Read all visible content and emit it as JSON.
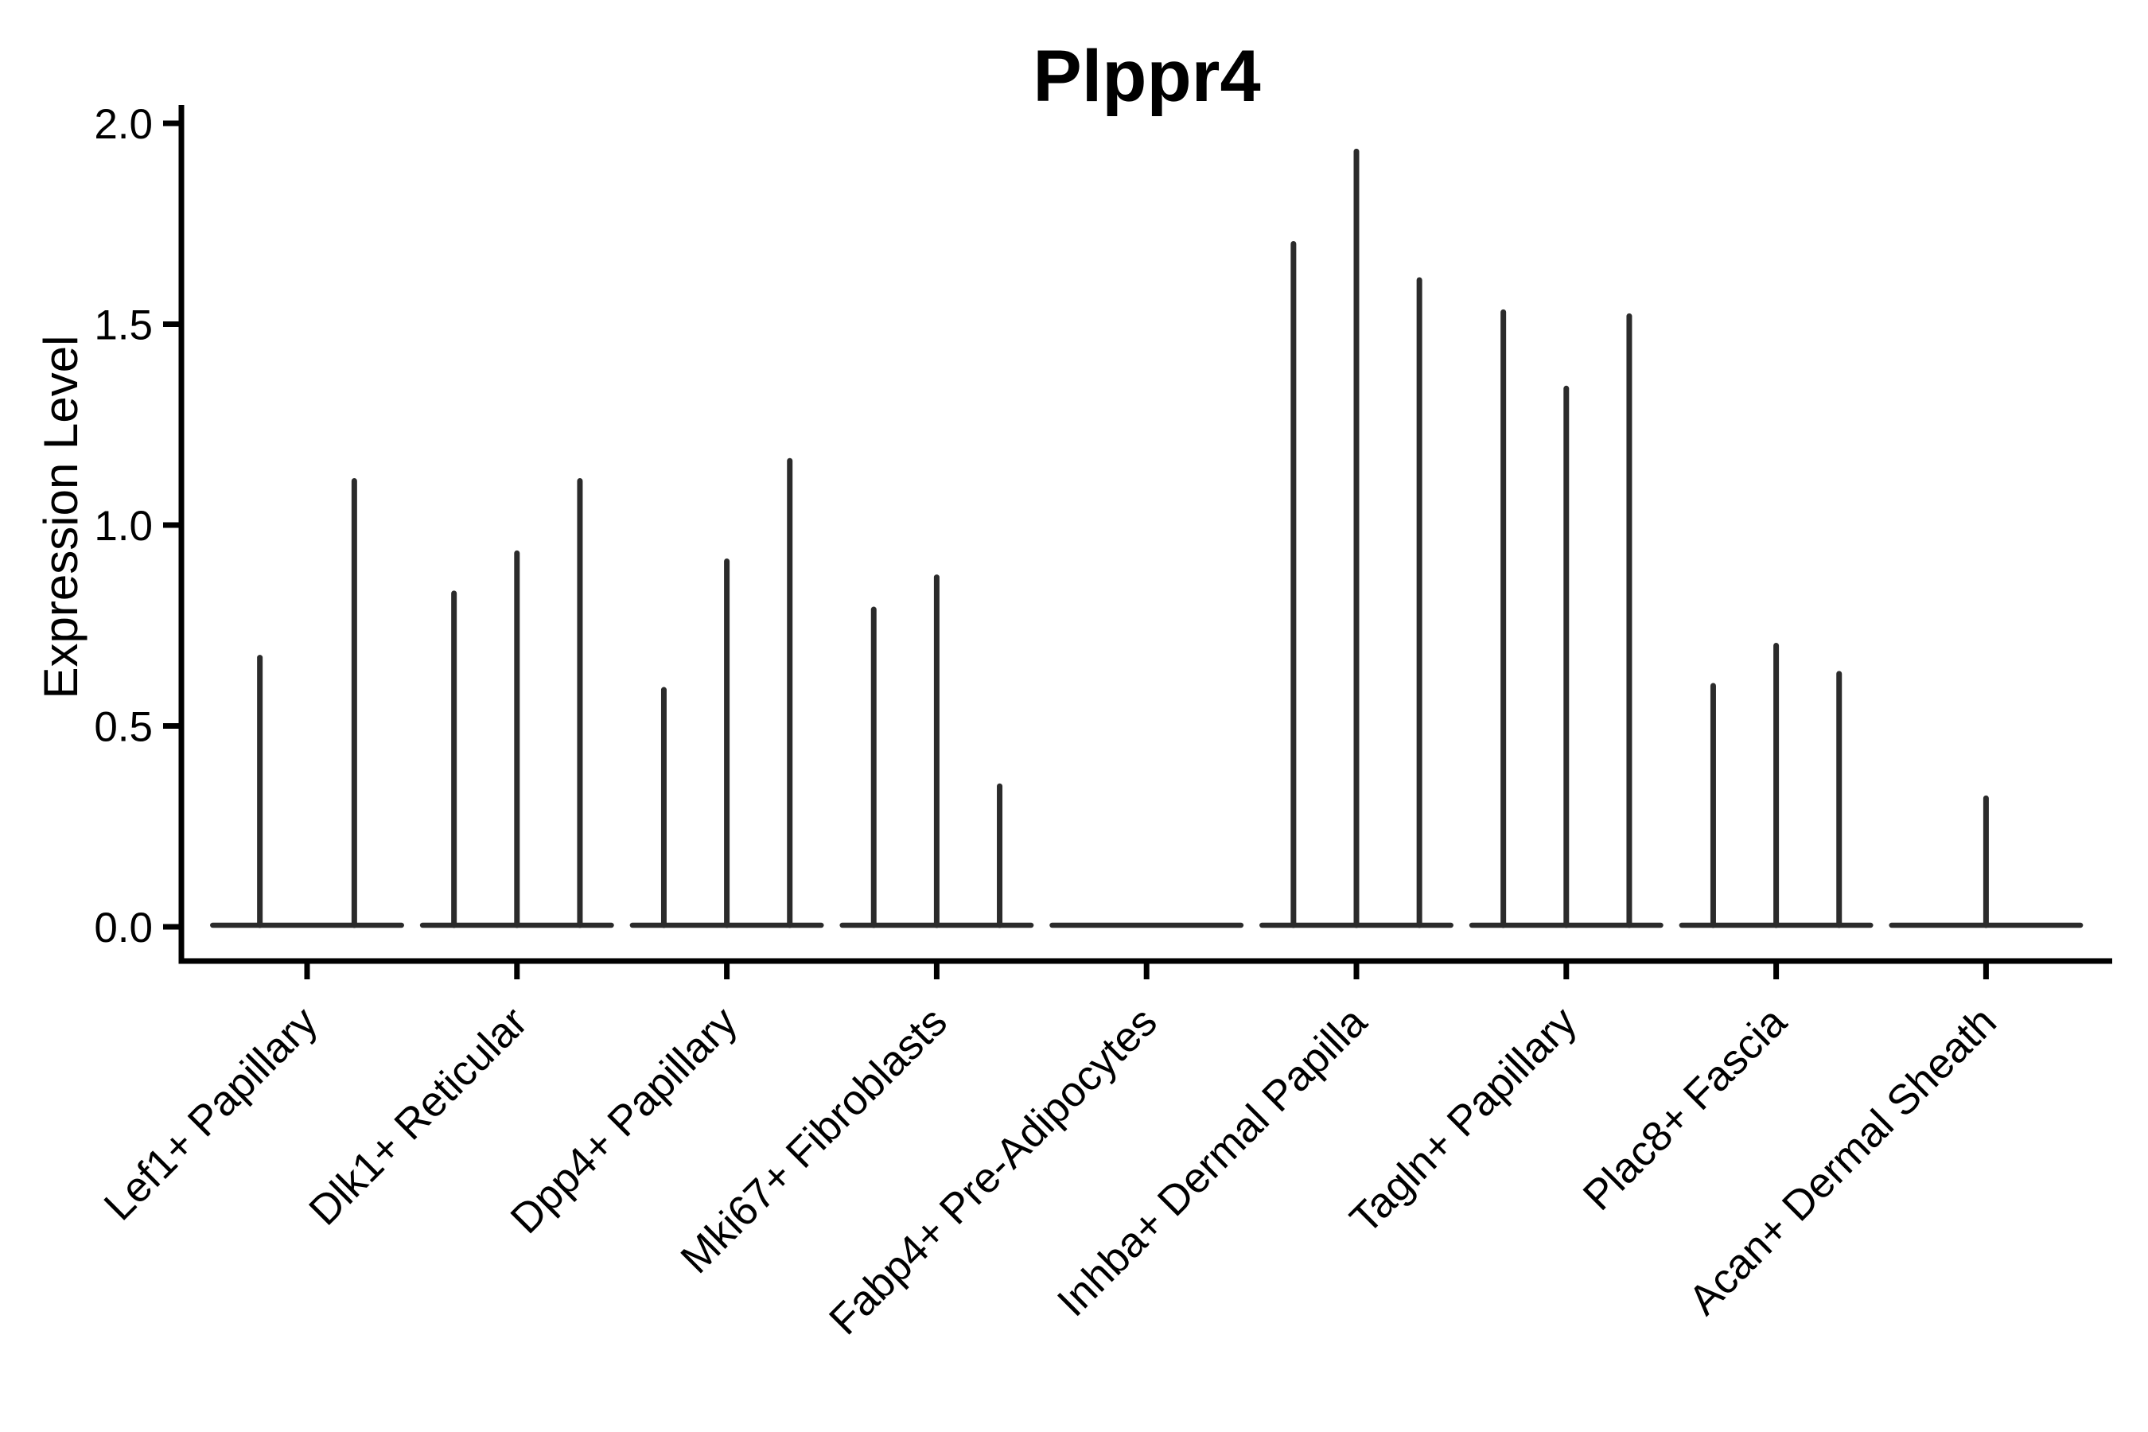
{
  "chart_data": {
    "type": "violin",
    "title": "Plppr4",
    "ylabel": "Expression Level",
    "xlabel": "",
    "ylim": [
      0,
      2.0
    ],
    "yticks": [
      0.0,
      0.5,
      1.0,
      1.5,
      2.0
    ],
    "ytick_labels": [
      "0.0",
      "0.5",
      "1.0",
      "1.5",
      "2.0"
    ],
    "grid": "off",
    "legend": "none",
    "violin_total_width": 0.9,
    "description": "Thin collapsed violins: each category shows a flat zero-density baseline with narrow spikes; spike peak = max expression level of that sub-violin",
    "categories": [
      {
        "label": "Lef1+ Papillary",
        "violins": [
          {
            "offset": -0.225,
            "peak": 0.67
          },
          {
            "offset": 0.225,
            "peak": 1.11
          }
        ]
      },
      {
        "label": "Dlk1+ Reticular",
        "violins": [
          {
            "offset": -0.3,
            "peak": 0.83
          },
          {
            "offset": 0.0,
            "peak": 0.93
          },
          {
            "offset": 0.3,
            "peak": 1.11
          }
        ]
      },
      {
        "label": "Dpp4+ Papillary",
        "violins": [
          {
            "offset": -0.3,
            "peak": 0.59
          },
          {
            "offset": 0.0,
            "peak": 0.91
          },
          {
            "offset": 0.3,
            "peak": 1.16
          }
        ]
      },
      {
        "label": "Mki67+ Fibroblasts",
        "violins": [
          {
            "offset": -0.3,
            "peak": 0.79
          },
          {
            "offset": 0.0,
            "peak": 0.87
          },
          {
            "offset": 0.3,
            "peak": 0.35
          }
        ]
      },
      {
        "label": "Fabp4+ Pre-Adipocytes",
        "violins": []
      },
      {
        "label": "Inhba+ Dermal Papilla",
        "violins": [
          {
            "offset": -0.3,
            "peak": 1.7
          },
          {
            "offset": 0.0,
            "peak": 1.93
          },
          {
            "offset": 0.3,
            "peak": 1.61
          }
        ]
      },
      {
        "label": "Tagln+ Papillary",
        "violins": [
          {
            "offset": -0.3,
            "peak": 1.53
          },
          {
            "offset": 0.0,
            "peak": 1.34
          },
          {
            "offset": 0.3,
            "peak": 1.52
          }
        ]
      },
      {
        "label": "Plac8+ Fascia",
        "violins": [
          {
            "offset": -0.3,
            "peak": 0.6
          },
          {
            "offset": 0.0,
            "peak": 0.7
          },
          {
            "offset": 0.3,
            "peak": 0.63
          }
        ]
      },
      {
        "label": "Acan+ Dermal Sheath",
        "violins": [
          {
            "offset": 0.0,
            "peak": 0.32
          }
        ]
      }
    ],
    "colors": {
      "ink": "#000000",
      "violin_stroke": "#2b2b2b",
      "background": "#ffffff"
    }
  }
}
